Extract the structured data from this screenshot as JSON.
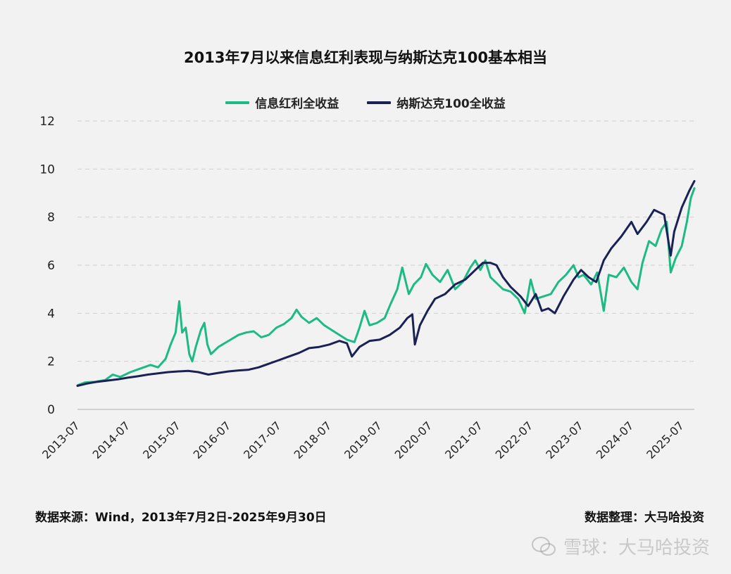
{
  "chart_data": {
    "type": "line",
    "title": "2013年7月以来信息红利表现与纳斯达克100基本相当",
    "ylim": [
      0,
      12
    ],
    "yticks": [
      "0",
      "2",
      "4",
      "6",
      "8",
      "10",
      "12"
    ],
    "xlim": [
      2013.5,
      2025.75
    ],
    "xticks": [
      {
        "label": "2013-07",
        "x": 2013.5
      },
      {
        "label": "2014-07",
        "x": 2014.5
      },
      {
        "label": "2015-07",
        "x": 2015.5
      },
      {
        "label": "2016-07",
        "x": 2016.5
      },
      {
        "label": "2017-07",
        "x": 2017.5
      },
      {
        "label": "2018-07",
        "x": 2018.5
      },
      {
        "label": "2019-07",
        "x": 2019.5
      },
      {
        "label": "2020-07",
        "x": 2020.5
      },
      {
        "label": "2021-07",
        "x": 2021.5
      },
      {
        "label": "2022-07",
        "x": 2022.5
      },
      {
        "label": "2023-07",
        "x": 2023.5
      },
      {
        "label": "2024-07",
        "x": 2024.5
      },
      {
        "label": "2025-07",
        "x": 2025.5
      }
    ],
    "grid": "horizontal-dashed",
    "legend_position": "top-center",
    "series": [
      {
        "name": "信息红利全收益",
        "color": "#1dba84",
        "points": [
          [
            2013.5,
            1.0
          ],
          [
            2013.65,
            1.12
          ],
          [
            2013.85,
            1.15
          ],
          [
            2014.05,
            1.22
          ],
          [
            2014.2,
            1.45
          ],
          [
            2014.35,
            1.35
          ],
          [
            2014.55,
            1.55
          ],
          [
            2014.75,
            1.7
          ],
          [
            2014.95,
            1.85
          ],
          [
            2015.1,
            1.75
          ],
          [
            2015.25,
            2.1
          ],
          [
            2015.35,
            2.7
          ],
          [
            2015.45,
            3.2
          ],
          [
            2015.52,
            4.5
          ],
          [
            2015.58,
            3.2
          ],
          [
            2015.65,
            3.4
          ],
          [
            2015.72,
            2.3
          ],
          [
            2015.78,
            2.0
          ],
          [
            2015.85,
            2.6
          ],
          [
            2015.95,
            3.3
          ],
          [
            2016.02,
            3.6
          ],
          [
            2016.08,
            2.7
          ],
          [
            2016.15,
            2.3
          ],
          [
            2016.3,
            2.6
          ],
          [
            2016.5,
            2.85
          ],
          [
            2016.7,
            3.1
          ],
          [
            2016.85,
            3.2
          ],
          [
            2017.0,
            3.25
          ],
          [
            2017.15,
            3.0
          ],
          [
            2017.3,
            3.1
          ],
          [
            2017.45,
            3.4
          ],
          [
            2017.6,
            3.55
          ],
          [
            2017.75,
            3.8
          ],
          [
            2017.85,
            4.15
          ],
          [
            2017.95,
            3.85
          ],
          [
            2018.1,
            3.6
          ],
          [
            2018.25,
            3.8
          ],
          [
            2018.4,
            3.5
          ],
          [
            2018.55,
            3.3
          ],
          [
            2018.7,
            3.1
          ],
          [
            2018.85,
            2.9
          ],
          [
            2019.0,
            2.8
          ],
          [
            2019.1,
            3.4
          ],
          [
            2019.2,
            4.1
          ],
          [
            2019.3,
            3.5
          ],
          [
            2019.45,
            3.6
          ],
          [
            2019.6,
            3.8
          ],
          [
            2019.72,
            4.4
          ],
          [
            2019.85,
            5.0
          ],
          [
            2019.95,
            5.9
          ],
          [
            2020.08,
            4.8
          ],
          [
            2020.18,
            5.2
          ],
          [
            2020.32,
            5.5
          ],
          [
            2020.42,
            6.05
          ],
          [
            2020.55,
            5.6
          ],
          [
            2020.7,
            5.3
          ],
          [
            2020.85,
            5.8
          ],
          [
            2021.0,
            5.0
          ],
          [
            2021.15,
            5.3
          ],
          [
            2021.3,
            5.9
          ],
          [
            2021.4,
            6.2
          ],
          [
            2021.5,
            5.8
          ],
          [
            2021.6,
            6.2
          ],
          [
            2021.7,
            5.5
          ],
          [
            2021.85,
            5.2
          ],
          [
            2021.95,
            5.0
          ],
          [
            2022.1,
            4.9
          ],
          [
            2022.25,
            4.6
          ],
          [
            2022.38,
            4.0
          ],
          [
            2022.5,
            5.4
          ],
          [
            2022.6,
            4.6
          ],
          [
            2022.75,
            4.7
          ],
          [
            2022.9,
            4.8
          ],
          [
            2023.05,
            5.3
          ],
          [
            2023.2,
            5.6
          ],
          [
            2023.35,
            6.0
          ],
          [
            2023.45,
            5.5
          ],
          [
            2023.55,
            5.6
          ],
          [
            2023.7,
            5.2
          ],
          [
            2023.82,
            5.7
          ],
          [
            2023.95,
            4.1
          ],
          [
            2024.05,
            5.6
          ],
          [
            2024.2,
            5.5
          ],
          [
            2024.35,
            5.9
          ],
          [
            2024.5,
            5.3
          ],
          [
            2024.62,
            5.0
          ],
          [
            2024.72,
            6.1
          ],
          [
            2024.85,
            7.0
          ],
          [
            2024.98,
            6.8
          ],
          [
            2025.1,
            7.5
          ],
          [
            2025.2,
            7.8
          ],
          [
            2025.28,
            5.7
          ],
          [
            2025.38,
            6.3
          ],
          [
            2025.5,
            6.8
          ],
          [
            2025.6,
            7.8
          ],
          [
            2025.68,
            8.8
          ],
          [
            2025.75,
            9.2
          ]
        ]
      },
      {
        "name": "纳斯达克100全收益",
        "color": "#1a2155",
        "points": [
          [
            2013.5,
            0.98
          ],
          [
            2013.7,
            1.08
          ],
          [
            2013.9,
            1.15
          ],
          [
            2014.1,
            1.2
          ],
          [
            2014.3,
            1.25
          ],
          [
            2014.5,
            1.32
          ],
          [
            2014.7,
            1.38
          ],
          [
            2014.9,
            1.45
          ],
          [
            2015.1,
            1.5
          ],
          [
            2015.3,
            1.55
          ],
          [
            2015.5,
            1.58
          ],
          [
            2015.7,
            1.6
          ],
          [
            2015.9,
            1.55
          ],
          [
            2016.1,
            1.45
          ],
          [
            2016.3,
            1.52
          ],
          [
            2016.5,
            1.58
          ],
          [
            2016.7,
            1.62
          ],
          [
            2016.9,
            1.65
          ],
          [
            2017.1,
            1.75
          ],
          [
            2017.3,
            1.9
          ],
          [
            2017.5,
            2.05
          ],
          [
            2017.7,
            2.2
          ],
          [
            2017.9,
            2.35
          ],
          [
            2018.1,
            2.55
          ],
          [
            2018.3,
            2.6
          ],
          [
            2018.5,
            2.7
          ],
          [
            2018.7,
            2.85
          ],
          [
            2018.85,
            2.75
          ],
          [
            2018.95,
            2.2
          ],
          [
            2019.1,
            2.6
          ],
          [
            2019.3,
            2.85
          ],
          [
            2019.5,
            2.9
          ],
          [
            2019.7,
            3.1
          ],
          [
            2019.9,
            3.4
          ],
          [
            2020.05,
            3.8
          ],
          [
            2020.15,
            3.95
          ],
          [
            2020.2,
            2.7
          ],
          [
            2020.3,
            3.5
          ],
          [
            2020.45,
            4.1
          ],
          [
            2020.6,
            4.6
          ],
          [
            2020.8,
            4.8
          ],
          [
            2021.0,
            5.2
          ],
          [
            2021.2,
            5.4
          ],
          [
            2021.4,
            5.8
          ],
          [
            2021.55,
            6.1
          ],
          [
            2021.7,
            6.1
          ],
          [
            2021.82,
            6.0
          ],
          [
            2021.95,
            5.5
          ],
          [
            2022.1,
            5.1
          ],
          [
            2022.3,
            4.7
          ],
          [
            2022.45,
            4.3
          ],
          [
            2022.6,
            4.8
          ],
          [
            2022.72,
            4.1
          ],
          [
            2022.85,
            4.2
          ],
          [
            2022.98,
            4.0
          ],
          [
            2023.15,
            4.7
          ],
          [
            2023.35,
            5.4
          ],
          [
            2023.5,
            5.8
          ],
          [
            2023.65,
            5.5
          ],
          [
            2023.8,
            5.3
          ],
          [
            2023.95,
            6.2
          ],
          [
            2024.1,
            6.7
          ],
          [
            2024.3,
            7.2
          ],
          [
            2024.5,
            7.8
          ],
          [
            2024.62,
            7.3
          ],
          [
            2024.8,
            7.8
          ],
          [
            2024.95,
            8.3
          ],
          [
            2025.05,
            8.2
          ],
          [
            2025.15,
            8.1
          ],
          [
            2025.28,
            6.4
          ],
          [
            2025.35,
            7.4
          ],
          [
            2025.5,
            8.4
          ],
          [
            2025.65,
            9.1
          ],
          [
            2025.75,
            9.5
          ]
        ]
      }
    ]
  },
  "footer": {
    "source": "数据来源：Wind，2013年7月2日-2025年9月30日",
    "compiled_by": "数据整理：大马哈投资"
  },
  "watermark": {
    "text": "雪球：大马哈投资"
  }
}
